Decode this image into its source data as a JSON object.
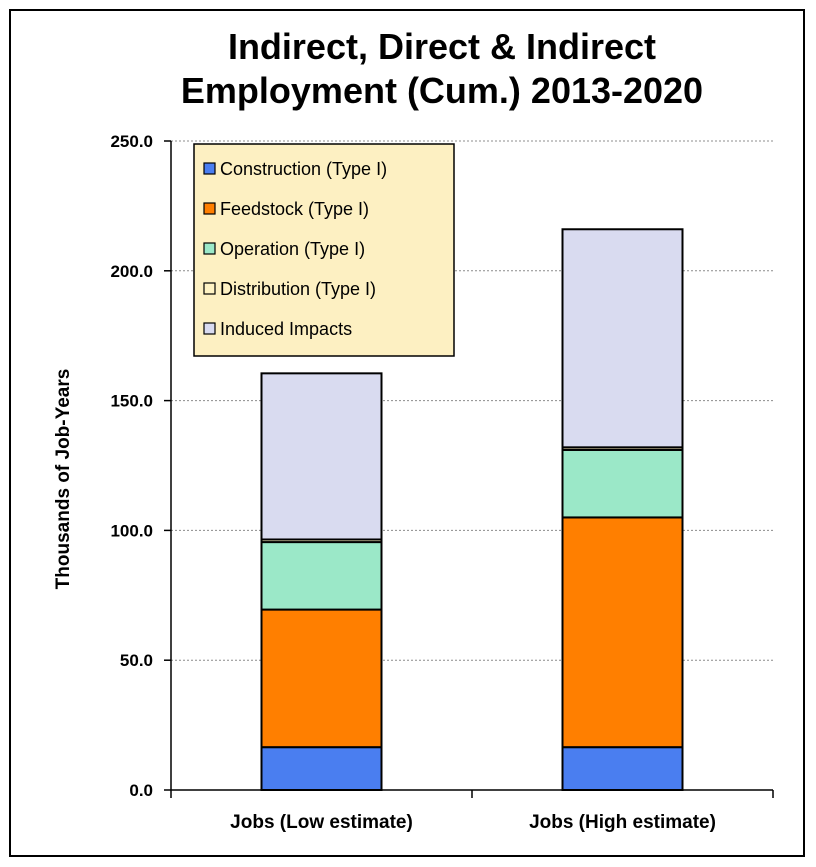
{
  "chart_data": {
    "type": "bar",
    "stacked": true,
    "title_lines": [
      "Indirect, Direct & Indirect",
      "Employment (Cum.) 2013-2020"
    ],
    "ylabel": "Thousands of Job-Years",
    "xlabel": "",
    "categories": [
      "Jobs (Low estimate)",
      "Jobs (High estimate)"
    ],
    "ylim": [
      0,
      250
    ],
    "yticks": [
      "0.0",
      "50.0",
      "100.0",
      "150.0",
      "200.0",
      "250.0"
    ],
    "grid": true,
    "legend_position": "top-left",
    "series": [
      {
        "name": "Construction (Type I)",
        "color": "#4a7ef0",
        "values": [
          16.5,
          16.5
        ]
      },
      {
        "name": "Feedstock (Type I)",
        "color": "#ff7f00",
        "values": [
          53.0,
          88.5
        ]
      },
      {
        "name": "Operation (Type I)",
        "color": "#9be8c8",
        "values": [
          26.0,
          26.0
        ]
      },
      {
        "name": "Distribution (Type I)",
        "color": "#fff3c4",
        "values": [
          1.0,
          1.0
        ]
      },
      {
        "name": "Induced Impacts",
        "color": "#d9dbf0",
        "values": [
          64.0,
          84.0
        ]
      }
    ],
    "legend_background": "#fdf0c2"
  }
}
